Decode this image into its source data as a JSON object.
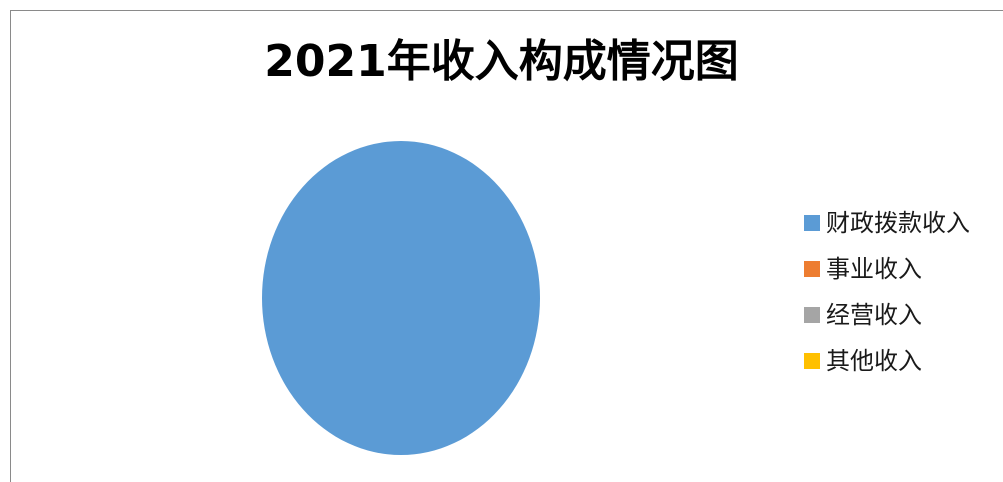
{
  "chart_data": {
    "type": "pie",
    "title": "2021年收入构成情况图",
    "categories": [
      "财政拨款收入",
      "事业收入",
      "经营收入",
      "其他收入"
    ],
    "values": [
      100,
      0,
      0,
      0
    ],
    "colors": [
      "#5B9BD5",
      "#ED7D31",
      "#A5A5A5",
      "#FFC000"
    ],
    "legend_position": "right"
  }
}
